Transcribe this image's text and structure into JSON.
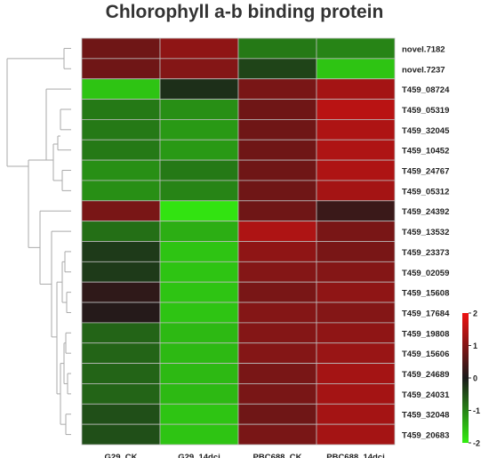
{
  "chart_data": {
    "type": "heatmap",
    "title": "Chlorophyll a-b binding protein",
    "columns": [
      "G29_CK",
      "G29_14dci",
      "PBC688_CK",
      "PBC688_14dci"
    ],
    "rows": [
      "novel.7182",
      "novel.7237",
      "T459_08724",
      "T459_05319",
      "T459_32045",
      "T459_10452",
      "T459_24767",
      "T459_05312",
      "T459_24392",
      "T459_13532",
      "T459_23373",
      "T459_02059",
      "T459_15608",
      "T459_17684",
      "T459_19808",
      "T459_15606",
      "T459_24689",
      "T459_24031",
      "T459_32048",
      "T459_20683"
    ],
    "values": [
      [
        0.8,
        1.1,
        -0.9,
        -1.0
      ],
      [
        0.8,
        1.0,
        -0.4,
        -1.6
      ],
      [
        -1.6,
        -0.2,
        0.9,
        1.3
      ],
      [
        -0.9,
        -1.1,
        0.8,
        1.5
      ],
      [
        -0.9,
        -1.2,
        0.8,
        1.4
      ],
      [
        -0.9,
        -1.2,
        0.8,
        1.4
      ],
      [
        -1.1,
        -0.9,
        0.8,
        1.4
      ],
      [
        -1.1,
        -1.0,
        0.8,
        1.3
      ],
      [
        0.9,
        -1.9,
        0.8,
        0.3
      ],
      [
        -0.8,
        -1.4,
        1.4,
        0.9
      ],
      [
        -0.3,
        -1.6,
        1.1,
        0.9
      ],
      [
        -0.3,
        -1.6,
        1.0,
        1.0
      ],
      [
        0.2,
        -1.6,
        0.9,
        1.1
      ],
      [
        0.1,
        -1.6,
        1.0,
        1.0
      ],
      [
        -0.7,
        -1.5,
        1.0,
        1.1
      ],
      [
        -0.7,
        -1.5,
        1.0,
        1.2
      ],
      [
        -0.7,
        -1.5,
        0.9,
        1.3
      ],
      [
        -0.7,
        -1.5,
        0.9,
        1.3
      ],
      [
        -0.5,
        -1.6,
        0.8,
        1.3
      ],
      [
        -0.5,
        -1.6,
        0.9,
        1.3
      ]
    ],
    "color_scale": {
      "min": -2,
      "mid": 0,
      "max": 2,
      "low_color": "#33ee11",
      "mid_color": "#1a1a1a",
      "high_color": "#ee1111"
    },
    "legend": {
      "ticks": [
        "2",
        "1",
        "0",
        "-1",
        "-2"
      ],
      "tick_values": [
        2,
        1,
        0,
        -1,
        -2
      ],
      "placement": "right"
    },
    "dendrogram": "left"
  }
}
